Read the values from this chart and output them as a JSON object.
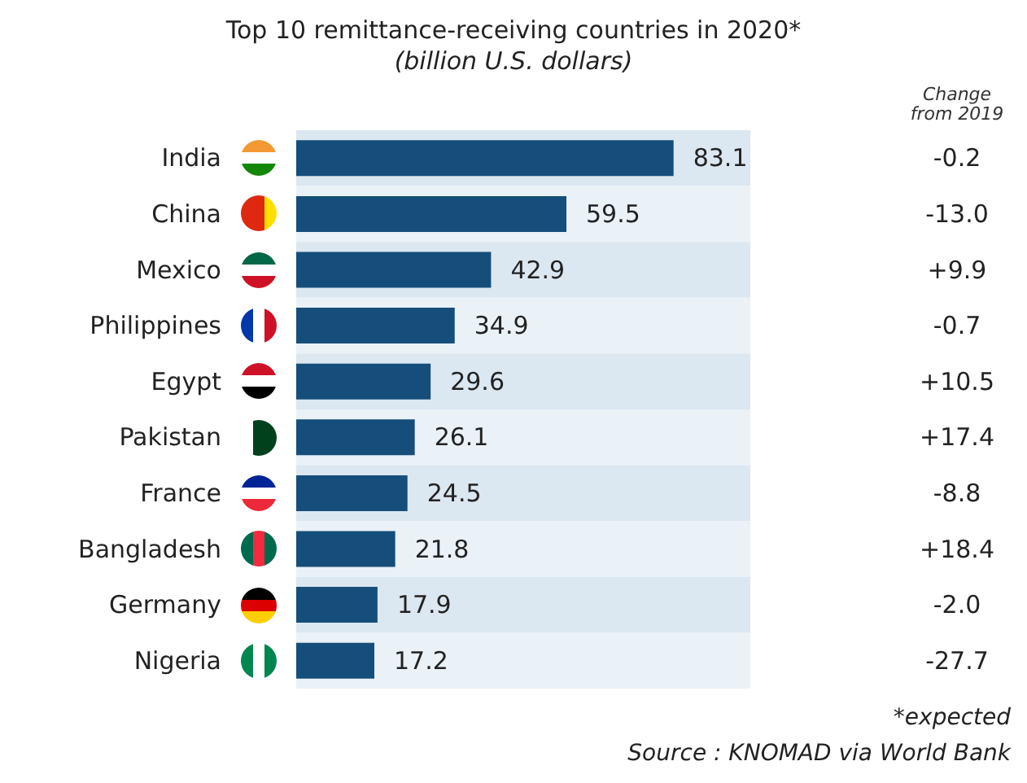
{
  "chart_data": {
    "type": "bar",
    "orientation": "horizontal",
    "title": "Top 10 remittance-receiving countries in 2020*",
    "subtitle": "(billion U.S. dollars)",
    "categories": [
      "India",
      "China",
      "Mexico",
      "Philippines",
      "Egypt",
      "Pakistan",
      "France",
      "Bangladesh",
      "Germany",
      "Nigeria"
    ],
    "values": [
      83.1,
      59.5,
      42.9,
      34.9,
      29.6,
      26.1,
      24.5,
      21.8,
      17.9,
      17.2
    ],
    "color": "#154e7a",
    "data_labels": true,
    "annotations": [
      "Change\nfrom 2019",
      "-0.2",
      "-13.0",
      "+9.9",
      "-0.7",
      "+10.5",
      "+17.4",
      "-8.8",
      "+18.4",
      "-2.0",
      "-27.7",
      "*expected",
      "Source : KNOMAD via World Bank"
    ]
  }
}
